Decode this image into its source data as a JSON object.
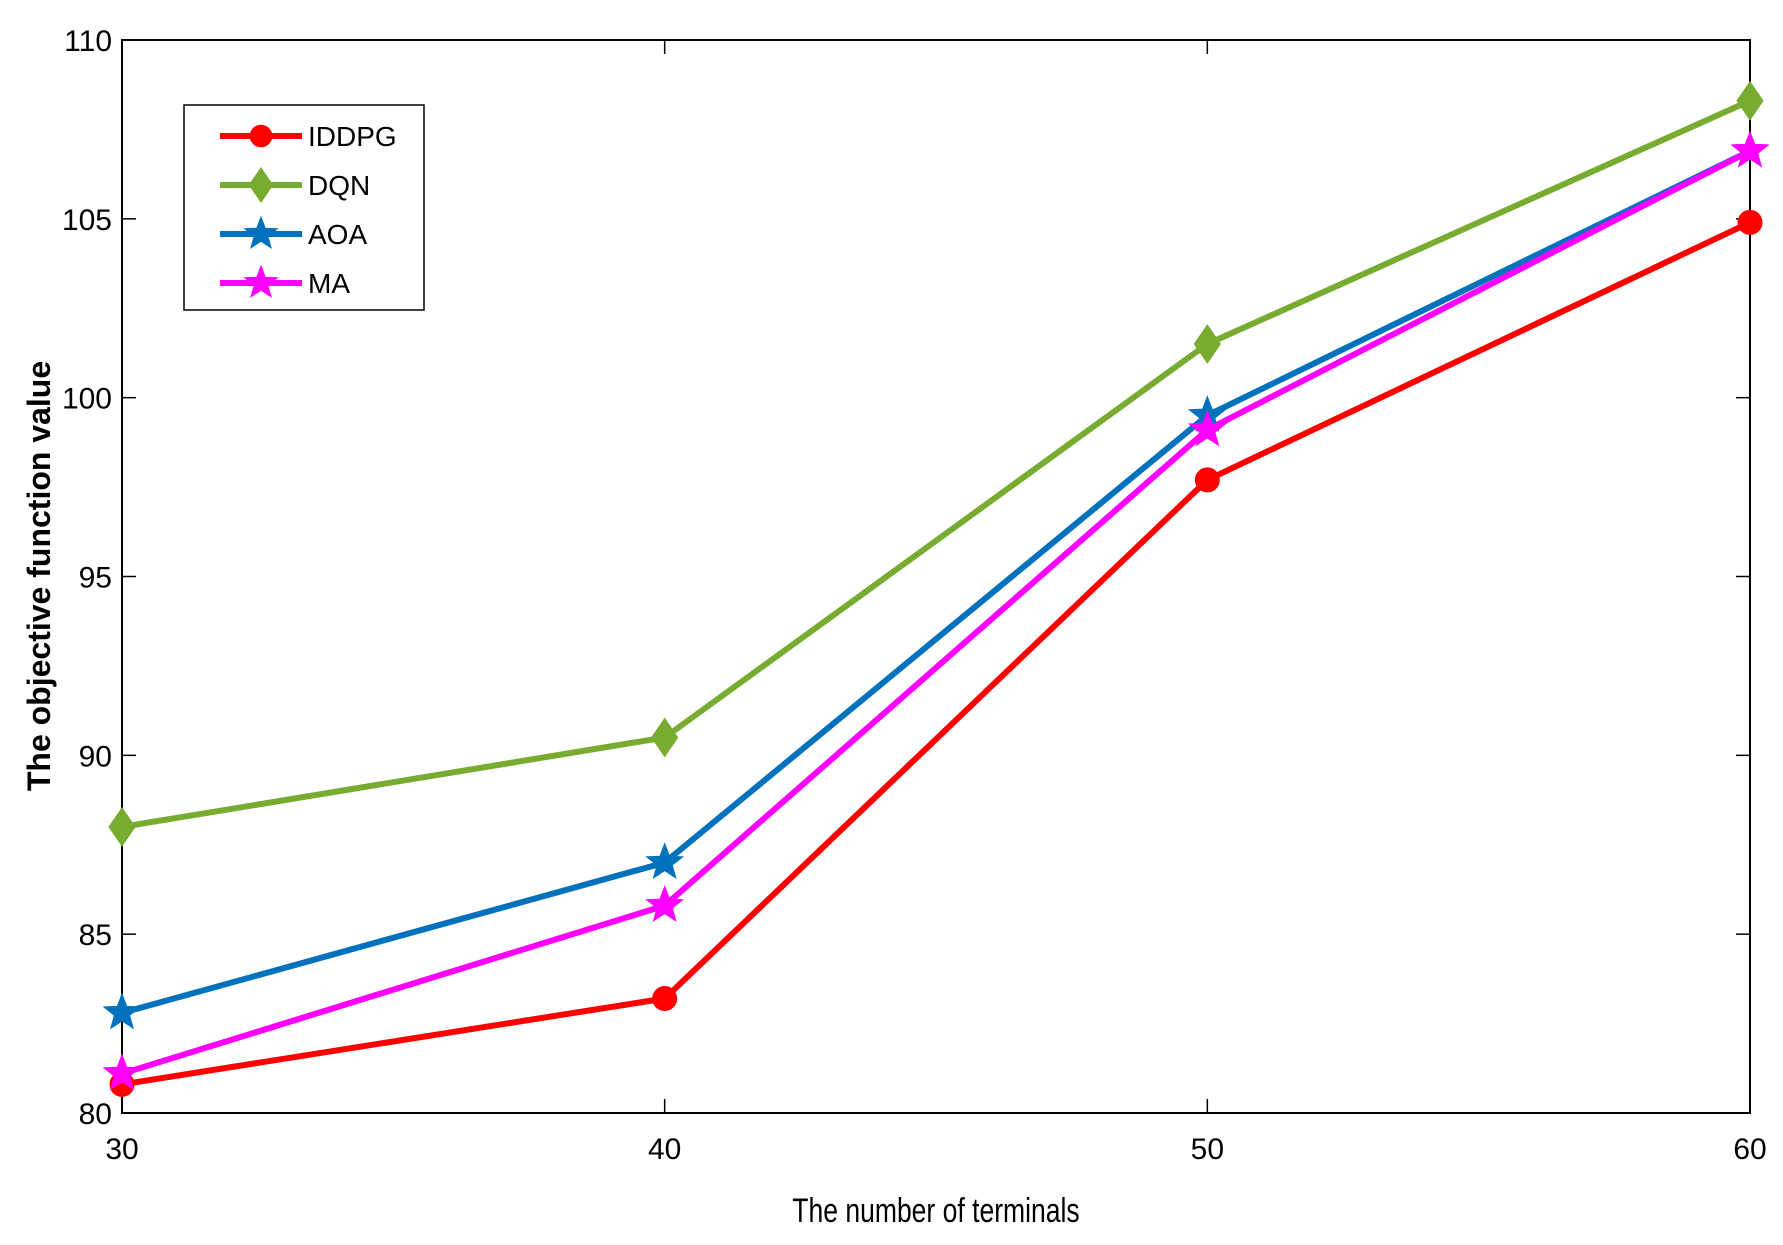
{
  "chart_data": {
    "type": "line",
    "title": "",
    "xlabel": "The number of terminals",
    "ylabel": "The objective function value",
    "x": [
      30,
      40,
      50,
      60
    ],
    "xlim": [
      30,
      60
    ],
    "ylim": [
      80,
      110
    ],
    "xticks": [
      "30",
      "40",
      "50",
      "60"
    ],
    "yticks": [
      "80",
      "85",
      "90",
      "95",
      "100",
      "105",
      "110"
    ],
    "grid": false,
    "legend_position": "top-left",
    "series": [
      {
        "name": "IDDPG",
        "values": [
          80.8,
          83.2,
          97.7,
          104.9
        ],
        "color": "#ff0000",
        "marker": "circle"
      },
      {
        "name": "DQN",
        "values": [
          88.0,
          90.5,
          101.5,
          108.3
        ],
        "color": "#77ac30",
        "marker": "diamond"
      },
      {
        "name": "AOA",
        "values": [
          82.8,
          87.0,
          99.5,
          106.9
        ],
        "color": "#0072bd",
        "marker": "star"
      },
      {
        "name": "MA",
        "values": [
          81.1,
          85.8,
          99.1,
          106.9
        ],
        "color": "#ff00ff",
        "marker": "star"
      }
    ]
  }
}
